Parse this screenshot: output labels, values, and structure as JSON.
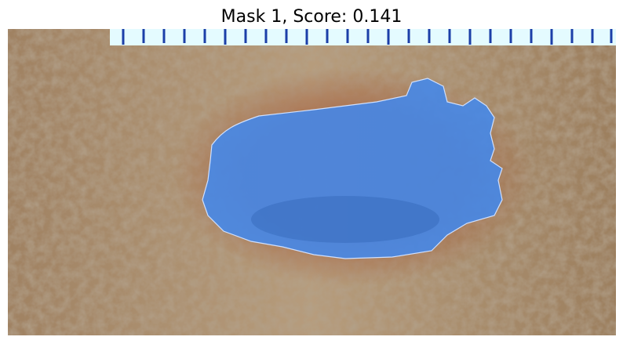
{
  "title": "Mask 1, Score: 0.141"
}
